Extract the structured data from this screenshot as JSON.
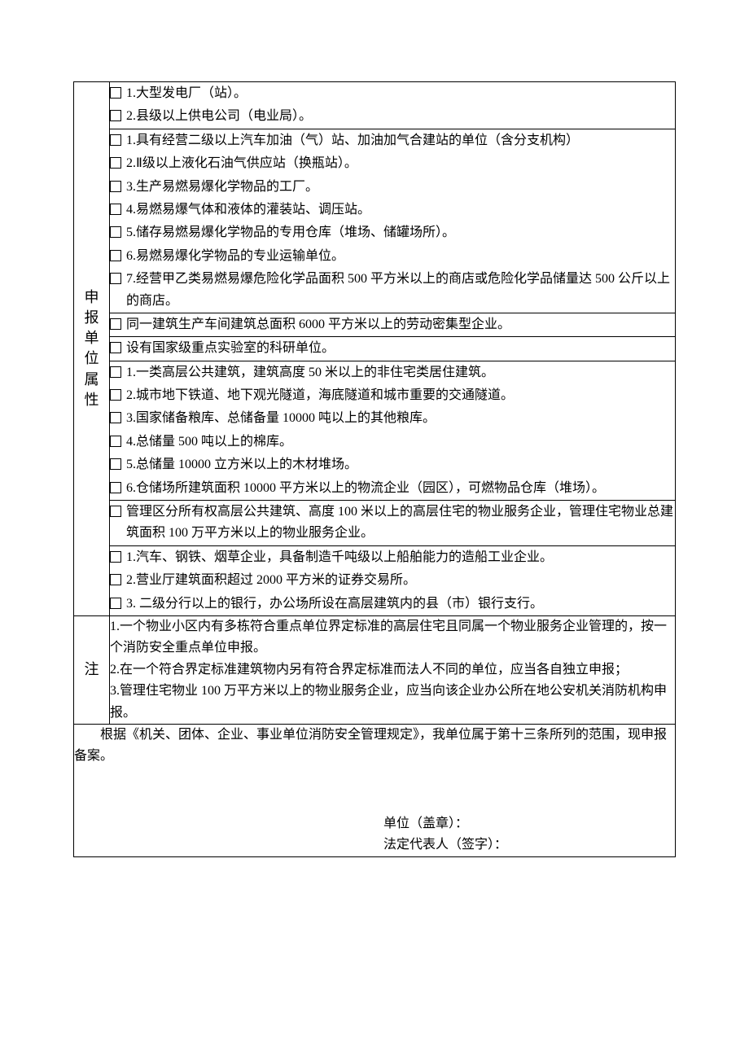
{
  "labels": {
    "attr_header": "申报单位属性",
    "note_header": "注",
    "stamp": "单位（盖章）：",
    "legal_rep": "法定代表人（签字）："
  },
  "sections": {
    "power": [
      "1.大型发电厂（站）。",
      "2.县级以上供电公司（电业局）。"
    ],
    "hazmat": [
      "1.具有经营二级以上汽车加油（气）站、加油加气合建站的单位（含分支机构）",
      "2.Ⅱ级以上液化石油气供应站（换瓶站）。",
      "3.生产易燃易爆化学物品的工厂。",
      "4.易燃易爆气体和液体的灌装站、调压站。",
      "5.储存易燃易爆化学物品的专用仓库（堆场、储罐场所）。",
      "6.易燃易爆化学物品的专业运输单位。",
      "7.经营甲乙类易燃易爆危险化学品面积 500 平方米以上的商店或危险化学品储量达 500 公斤以上的商店。"
    ],
    "labor": "同一建筑生产车间建筑总面积 6000 平方米以上的劳动密集型企业。",
    "lab": "设有国家级重点实验室的科研单位。",
    "building": [
      "1.一类高层公共建筑，建筑高度 50 米以上的非住宅类居住建筑。",
      "2.城市地下铁道、地下观光隧道，海底隧道和城市重要的交通隧道。",
      "3.国家储备粮库、总储备量 10000 吨以上的其他粮库。",
      "4.总储量 500 吨以上的棉库。",
      "5.总储量 10000 立方米以上的木材堆场。",
      "6.仓储场所建筑面积 10000 平方米以上的物流企业（园区），可燃物品仓库（堆场）。"
    ],
    "property": "管理区分所有权高层公共建筑、高度 100 米以上的高层住宅的物业服务企业，管理住宅物业总建筑面积 100 万平方米以上的物业服务企业。",
    "industry": [
      "1.汽车、钢铁、烟草企业，具备制造千吨级以上船舶能力的造船工业企业。",
      "2.营业厅建筑面积超过 2000 平方米的证券交易所。",
      "3. 二级分行以上的银行，办公场所设在高层建筑内的县（市）银行支行。"
    ]
  },
  "notes": [
    "1.一个物业小区内有多栋符合重点单位界定标准的高层住宅且同属一个物业服务企业管理的，按一个消防安全重点单位申报。",
    "2.在一个符合界定标准建筑物内另有符合界定标准而法人不同的单位，应当各自独立申报；",
    "3.管理住宅物业 100 万平方米以上的物业服务企业，应当向该企业办公所在地公安机关消防机构申报。"
  ],
  "footer": "根据《机关、团体、企业、事业单位消防安全管理规定》，我单位属于第十三条所列的范围，现申报备案。"
}
